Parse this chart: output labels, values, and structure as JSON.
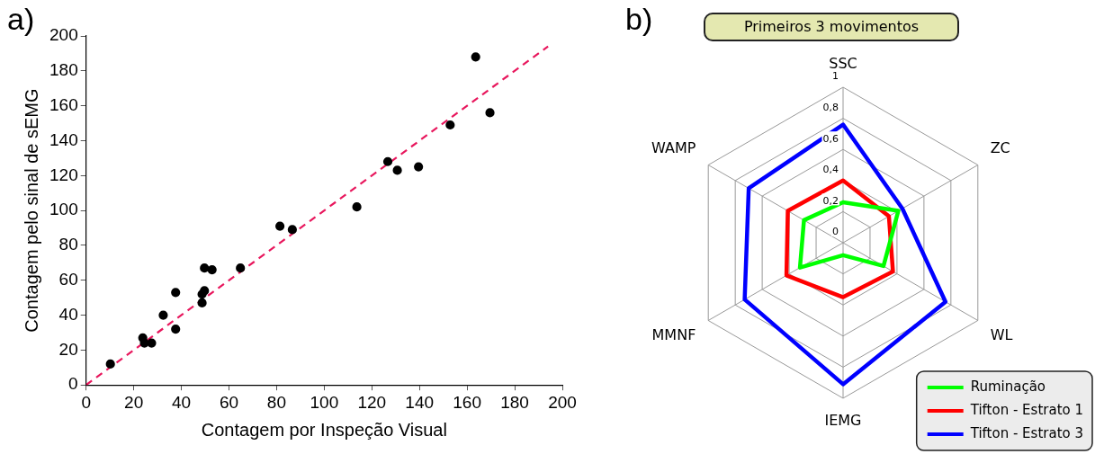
{
  "chart_data": [
    {
      "type": "scatter",
      "xlabel": "Contagem por Inspeção Visual",
      "ylabel": "Contagem pelo sinal de sEMG",
      "annotations": [
        "a)"
      ],
      "xlim": [
        0,
        200
      ],
      "ylim": [
        0,
        200
      ],
      "xticks": [
        0,
        20,
        40,
        60,
        80,
        100,
        120,
        140,
        160,
        180,
        200
      ],
      "yticks": [
        0,
        20,
        40,
        60,
        80,
        100,
        120,
        140,
        160,
        180,
        200
      ],
      "grid": false,
      "legend": false,
      "marker": "circle",
      "series": [
        {
          "type": "scatter",
          "color": "#000000",
          "x": [
            10.2,
            23.8,
            24.5,
            27.5,
            32.4,
            37.6,
            37.6,
            48.7,
            48.7,
            49.7,
            49.7,
            52.9,
            64.8,
            81.4,
            86.6,
            113.7,
            126.7,
            130.7,
            139.6,
            152.9,
            163.6,
            169.6
          ],
          "values": [
            12,
            27,
            24,
            24,
            40,
            53,
            32,
            47,
            52,
            54,
            67,
            66,
            67,
            91,
            89,
            102,
            128,
            123,
            125,
            149,
            188,
            156
          ]
        },
        {
          "type": "line",
          "color": "#e8175d",
          "line_style": "dashed",
          "marker": "none",
          "x": [
            0,
            194
          ],
          "values": [
            0,
            194
          ]
        }
      ]
    },
    {
      "type": "radar",
      "title": "Primeiros 3 movimentos",
      "annotations": [
        "b)"
      ],
      "categories": [
        "SSC",
        "ZC",
        "WL",
        "IEMG",
        "MMNF",
        "WAMP"
      ],
      "ylim": [
        0,
        1
      ],
      "yticks": [
        0,
        {
          "value": 0.2,
          "label": "0,2"
        },
        {
          "value": 0.4,
          "label": "0,4"
        },
        {
          "value": 0.6,
          "label": "0,6"
        },
        {
          "value": 0.8,
          "label": "0,8"
        },
        1
      ],
      "grid": true,
      "legend": "bottom right",
      "marker": "none",
      "series": [
        {
          "name": "Ruminação",
          "color": "#00ff00",
          "values": [
            0.26,
            0.41,
            0.3,
            0.08,
            0.32,
            0.29
          ]
        },
        {
          "name": "Tifton - Estrato 1",
          "color": "#ff0000",
          "values": [
            0.4,
            0.34,
            0.37,
            0.35,
            0.42,
            0.41
          ]
        },
        {
          "name": "Tifton - Estrato 3",
          "color": "#0000ff",
          "values": [
            0.76,
            0.44,
            0.76,
            0.91,
            0.73,
            0.7
          ]
        }
      ]
    }
  ]
}
